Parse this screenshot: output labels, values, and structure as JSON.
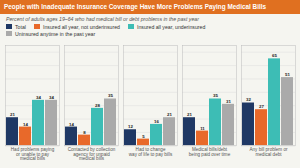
{
  "chart_data": {
    "type": "bar",
    "title": "People with Inadequate Insurance Coverage Have More Problems Paying Medical Bills",
    "subtitle": "Percent of adults ages 19–64 who had medical bill or debt problems in the past year",
    "categories": [
      "Had problems paying\nor unable to pay\nmedical bills",
      "Contacted by collection\nagency for unpaid\nmedical bills",
      "Had to change\nway of life to pay bills",
      "Medical bills/debt\nbeing paid over time",
      "Any bill problem or\nmedical debt"
    ],
    "series": [
      {
        "name": "Total",
        "color": "#1F3864",
        "values": [
          21,
          14,
          12,
          21,
          32
        ]
      },
      {
        "name": "Insured all year, not underinsured",
        "color": "#E8692A",
        "values": [
          14,
          8,
          5,
          11,
          27
        ]
      },
      {
        "name": "Insured all year, underinsured",
        "color": "#3DBDB5",
        "values": [
          34,
          28,
          16,
          35,
          65
        ]
      },
      {
        "name": "Uninsured anytime in the past year",
        "color": "#AAAAAA",
        "values": [
          34,
          35,
          21,
          31,
          51
        ]
      }
    ],
    "ylim": [
      0,
      75
    ],
    "yticks": [
      0,
      10,
      20,
      30,
      40,
      50,
      60,
      70
    ],
    "grid": true,
    "legend": "top",
    "data_labels": true,
    "tick_labels": "x"
  }
}
